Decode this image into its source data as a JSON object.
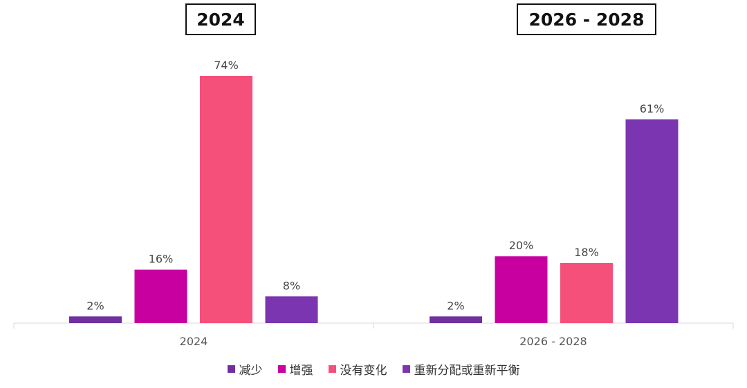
{
  "chart_data": {
    "type": "bar",
    "groups": [
      "2024",
      "2026 - 2028"
    ],
    "group_titles": [
      "2024",
      "2026 - 2028"
    ],
    "series": [
      {
        "name": "减少",
        "color": "#7030A0",
        "values": [
          2,
          2
        ],
        "labels": [
          "2%",
          "2%"
        ]
      },
      {
        "name": "增强",
        "color": "#C800A0",
        "values": [
          16,
          20
        ],
        "labels": [
          "16%",
          "20%"
        ]
      },
      {
        "name": "没有变化",
        "color": "#F5507A",
        "values": [
          74,
          18
        ],
        "labels": [
          "74%",
          "18%"
        ]
      },
      {
        "name": "重新分配或重新平衡",
        "color": "#7B35B0",
        "values": [
          8,
          61
        ],
        "labels": [
          "8%",
          "61%"
        ]
      }
    ],
    "ylim": [
      0,
      74
    ],
    "grid": false,
    "legend_position": "bottom"
  }
}
